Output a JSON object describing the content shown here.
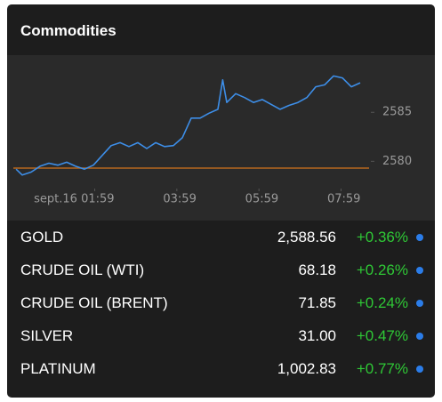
{
  "header": {
    "title": "Commodities"
  },
  "chart_data": {
    "type": "line",
    "x": [
      4,
      13,
      26,
      39,
      52,
      65,
      78,
      91,
      104,
      117,
      130,
      143,
      156,
      169,
      182,
      195,
      208,
      221,
      234,
      247,
      260,
      273,
      286,
      299,
      306,
      312,
      325,
      338,
      351,
      364,
      377,
      390,
      403,
      416,
      429,
      442,
      455,
      468,
      481,
      494,
      507
    ],
    "values": [
      2579.2,
      2578.6,
      2578.9,
      2579.5,
      2579.8,
      2579.6,
      2579.9,
      2579.5,
      2579.2,
      2579.6,
      2580.6,
      2581.6,
      2581.9,
      2581.5,
      2581.9,
      2581.3,
      2581.9,
      2581.5,
      2581.6,
      2582.4,
      2584.4,
      2584.4,
      2584.9,
      2585.3,
      2588.3,
      2586.0,
      2586.9,
      2586.5,
      2586.0,
      2586.3,
      2585.8,
      2585.3,
      2585.7,
      2586.0,
      2586.5,
      2587.6,
      2587.8,
      2588.7,
      2588.5,
      2587.6,
      2588.0
    ],
    "color": "#3d8ee8",
    "xlim": [
      0,
      520
    ],
    "ylim": [
      2577.4,
      2590.1
    ],
    "xticks": [
      {
        "value": 119,
        "label": "sept.16 01:59"
      },
      {
        "value": 239,
        "label": "03:59"
      },
      {
        "value": 359,
        "label": "05:59"
      },
      {
        "value": 479,
        "label": "07:59"
      }
    ],
    "yticks": [
      2580,
      2585
    ],
    "reference_line": {
      "value": 2579.3,
      "color": "#b8681e"
    }
  },
  "table": {
    "rows": [
      [
        "GOLD",
        "2,588.56",
        "+0.36%"
      ],
      [
        "CRUDE OIL (WTI)",
        "68.18",
        "+0.26%"
      ],
      [
        "CRUDE OIL (BRENT)",
        "71.85",
        "+0.24%"
      ],
      [
        "SILVER",
        "31.00",
        "+0.47%"
      ],
      [
        "PLATINUM",
        "1,002.83",
        "+0.77%"
      ]
    ]
  }
}
